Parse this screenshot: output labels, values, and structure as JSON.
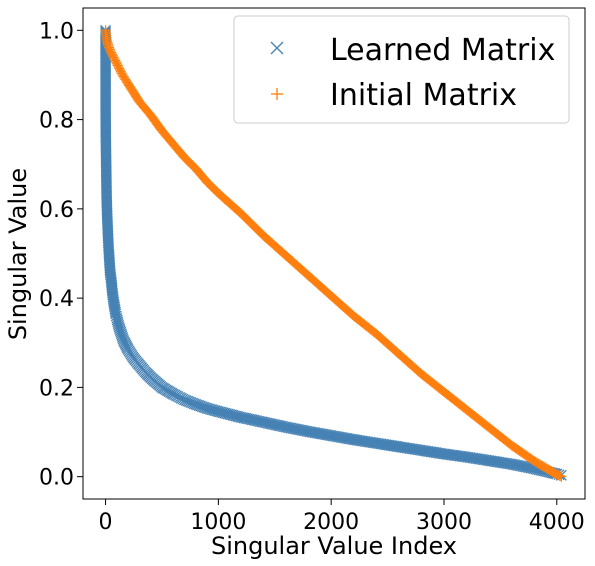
{
  "chart_data": {
    "type": "scatter",
    "xlabel": "Singular Value Index",
    "ylabel": "Singular Value",
    "xlim": [
      -200,
      4250
    ],
    "ylim": [
      -0.05,
      1.05
    ],
    "xticks": [
      0,
      1000,
      2000,
      3000,
      4000
    ],
    "xtick_labels": [
      "0",
      "1000",
      "2000",
      "3000",
      "4000"
    ],
    "yticks": [
      0.0,
      0.2,
      0.4,
      0.6,
      0.8,
      1.0
    ],
    "ytick_labels": [
      "0.0",
      "0.2",
      "0.4",
      "0.6",
      "0.8",
      "1.0"
    ],
    "grid": false,
    "legend": "top-right",
    "series": [
      {
        "name": "Learned Matrix",
        "marker": "x",
        "color": "#4682b4",
        "x": [
          0,
          1,
          3,
          5,
          8,
          10,
          15,
          20,
          25,
          30,
          40,
          50,
          60,
          70,
          80,
          90,
          100,
          120,
          140,
          160,
          180,
          200,
          250,
          300,
          350,
          400,
          500,
          600,
          700,
          800,
          900,
          1000,
          1200,
          1400,
          1600,
          1800,
          2000,
          2200,
          2400,
          2600,
          2800,
          3000,
          3200,
          3400,
          3600,
          3800,
          4000,
          4040
        ],
        "y": [
          1.0,
          0.81,
          0.74,
          0.71,
          0.65,
          0.62,
          0.58,
          0.55,
          0.52,
          0.5,
          0.46,
          0.44,
          0.415,
          0.395,
          0.38,
          0.365,
          0.355,
          0.335,
          0.32,
          0.305,
          0.295,
          0.285,
          0.265,
          0.25,
          0.235,
          0.222,
          0.2,
          0.185,
          0.172,
          0.162,
          0.153,
          0.146,
          0.133,
          0.122,
          0.111,
          0.101,
          0.092,
          0.083,
          0.075,
          0.067,
          0.059,
          0.051,
          0.044,
          0.036,
          0.028,
          0.018,
          0.006,
          0.003
        ]
      },
      {
        "name": "Initial Matrix",
        "marker": "+",
        "color": "#ff7f0e",
        "x": [
          0,
          10,
          25,
          50,
          100,
          150,
          200,
          300,
          400,
          500,
          600,
          700,
          800,
          900,
          1000,
          1200,
          1400,
          1600,
          1800,
          2000,
          2200,
          2400,
          2600,
          2800,
          3000,
          3200,
          3400,
          3600,
          3800,
          3900,
          4000,
          4040
        ],
        "y": [
          1.0,
          0.98,
          0.965,
          0.95,
          0.925,
          0.9,
          0.88,
          0.84,
          0.81,
          0.775,
          0.745,
          0.715,
          0.69,
          0.66,
          0.635,
          0.59,
          0.54,
          0.495,
          0.45,
          0.405,
          0.36,
          0.32,
          0.275,
          0.23,
          0.19,
          0.15,
          0.11,
          0.07,
          0.035,
          0.02,
          0.005,
          0.0
        ]
      }
    ]
  }
}
